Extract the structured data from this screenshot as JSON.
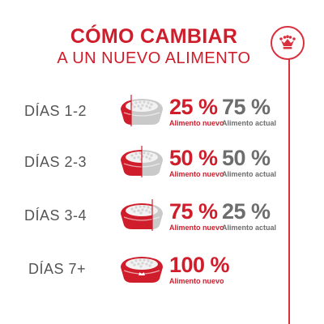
{
  "header": {
    "title": "CÓMO CAMBIAR",
    "subtitle": "A UN NUEVO ALIMENTO"
  },
  "brand": {
    "logo_icon": "royal-canin-crown-icon"
  },
  "colors": {
    "red": "#cf1d2b",
    "gray": "#6d6d6d",
    "bowl_gray": "#c9c9c9"
  },
  "steps": [
    {
      "days": "DÍAS 1-2",
      "new_pct": "25 %",
      "new_label": "Alimento nuevo",
      "current_pct": "75 %",
      "current_label": "Alimento actual",
      "new_fraction": 0.25
    },
    {
      "days": "DÍAS 2-3",
      "new_pct": "50 %",
      "new_label": "Alimento nuevo",
      "current_pct": "50 %",
      "current_label": "Alimento actual",
      "new_fraction": 0.5
    },
    {
      "days": "DÍAS 3-4",
      "new_pct": "75 %",
      "new_label": "Alimento nuevo",
      "current_pct": "25 %",
      "current_label": "Alimento actual",
      "new_fraction": 0.75
    },
    {
      "days": "DÍAS 7+",
      "new_pct": "100 %",
      "new_label": "Alimento nuevo",
      "new_fraction": 1.0
    }
  ]
}
